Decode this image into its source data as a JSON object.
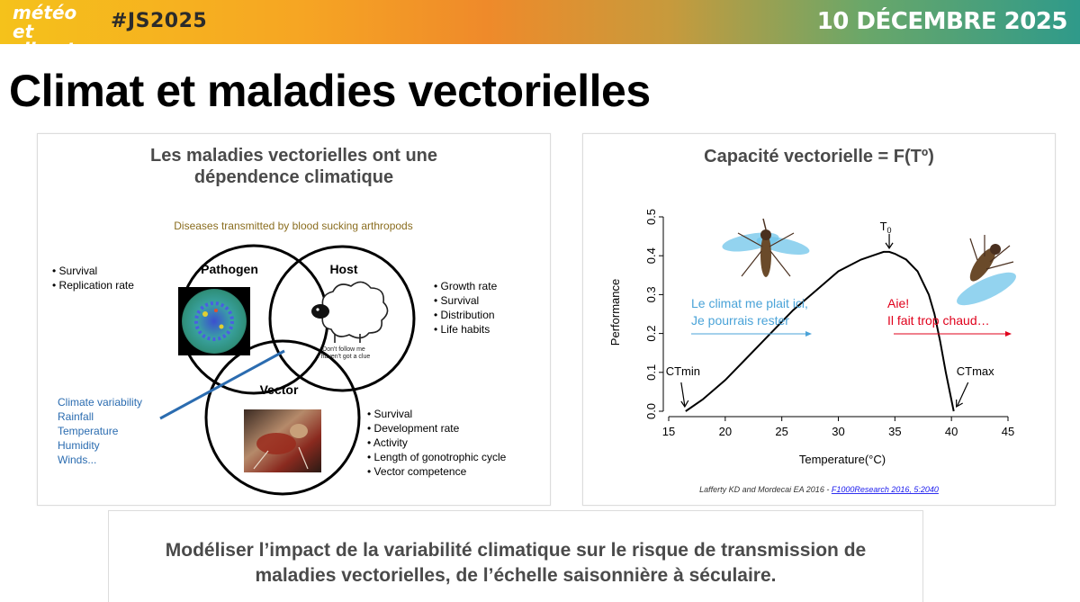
{
  "header": {
    "logo_line1": "météo",
    "logo_line2": "et climat",
    "hashtag": "#JS2025",
    "date": "10 DÉCEMBRE 2025"
  },
  "slide_title": "Climat et maladies vectorielles",
  "left_panel": {
    "title_line1": "Les maladies vectorielles ont une",
    "title_line2": "dépendence climatique",
    "diagram_caption": "Diseases transmitted by blood sucking arthropods",
    "pathogen": {
      "label": "Pathogen",
      "traits": [
        "Survival",
        "Replication rate"
      ]
    },
    "host": {
      "label": "Host",
      "traits": [
        "Growth rate",
        "Survival",
        "Distribution",
        "Life habits"
      ],
      "sheep_caption_line1": "Don't follow me",
      "sheep_caption_line2": "I haven't got a clue"
    },
    "vector": {
      "label": "Vector",
      "traits": [
        "Survival",
        "Development rate",
        "Activity",
        "Length of gonotrophic cycle",
        "Vector competence"
      ]
    },
    "climate_factors": [
      "Climate variability",
      "Rainfall",
      "Temperature",
      "Humidity",
      "Winds..."
    ],
    "accent_color": "#2b6cb0"
  },
  "right_panel": {
    "title": "Capacité vectorielle = F(Tº)",
    "citation_text": "Lafferty KD and Mordecai EA 2016 - ",
    "citation_link": "F1000Research 2016, 5:2040",
    "annotation_left_line1": "Le climat me plait ici,",
    "annotation_left_line2": "Je pourrais rester",
    "annotation_right_line1": "Aie!",
    "annotation_right_line2": "Il fait trop chaud…",
    "colors": {
      "cool": "#4aa3d8",
      "hot": "#e0001b"
    }
  },
  "chart_data": {
    "type": "line",
    "xlabel": "Temperature(°C)",
    "ylabel": "Performance",
    "xlim": [
      15,
      45
    ],
    "ylim": [
      0,
      0.5
    ],
    "x_ticks": [
      15,
      20,
      25,
      30,
      35,
      40,
      45
    ],
    "y_ticks": [
      0.0,
      0.1,
      0.2,
      0.3,
      0.4,
      0.5
    ],
    "x_tick_labels": [
      "15",
      "20",
      "25",
      "30",
      "35",
      "40",
      "45"
    ],
    "y_tick_labels": [
      "0.0",
      "0.1",
      "0.2",
      "0.3",
      "0.4",
      "0.5"
    ],
    "series": [
      {
        "x": [
          16.5,
          18,
          20,
          22,
          24,
          26,
          28,
          30,
          32,
          33,
          34,
          34.5,
          35,
          36,
          37,
          38,
          38.5,
          39,
          39.5,
          40.2
        ],
        "y": [
          0.0,
          0.03,
          0.08,
          0.14,
          0.2,
          0.26,
          0.31,
          0.36,
          0.39,
          0.4,
          0.41,
          0.41,
          0.405,
          0.39,
          0.36,
          0.3,
          0.25,
          0.18,
          0.1,
          0.0
        ]
      }
    ],
    "annotations": [
      {
        "label": "T",
        "subscript": "0",
        "x": 34.5,
        "y": 0.41
      },
      {
        "label": "CTmin",
        "x": 16.5,
        "y": 0.0
      },
      {
        "label": "CTmax",
        "x": 40.2,
        "y": 0.0
      }
    ],
    "grid": false
  },
  "bottom_statement": {
    "line1": "Modéliser l’impact de la variabilité climatique sur le risque de transmission de",
    "line2": "maladies vectorielles, de l’échelle saisonnière à séculaire."
  }
}
